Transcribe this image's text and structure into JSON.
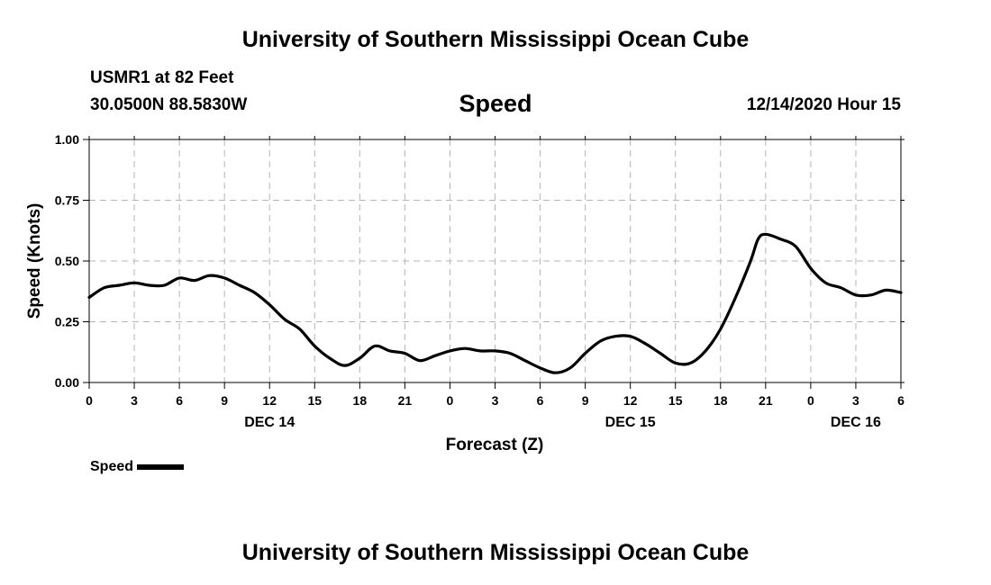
{
  "header": {
    "title": "University of Southern Mississippi Ocean Cube",
    "station": "USMR1 at 82 Feet",
    "coords": "30.0500N 88.5830W",
    "parameter": "Speed",
    "datetime": "12/14/2020 Hour 15"
  },
  "footer": {
    "title": "University of Southern Mississippi Ocean Cube"
  },
  "legend": {
    "label": "Speed",
    "line_color": "#000000"
  },
  "chart_data": {
    "type": "line",
    "title": "Speed",
    "xlabel": "Forecast (Z)",
    "ylabel": "Speed (Knots)",
    "x_unit": "hours",
    "xlim": [
      0,
      54
    ],
    "ylim": [
      0,
      1.0
    ],
    "grid": true,
    "legend_position": "bottom-left",
    "y_ticks": [
      {
        "value": 0.0,
        "label": "0.00"
      },
      {
        "value": 0.25,
        "label": "0.25"
      },
      {
        "value": 0.5,
        "label": "0.50"
      },
      {
        "value": 0.75,
        "label": "0.75"
      },
      {
        "value": 1.0,
        "label": "1.00"
      }
    ],
    "x_ticks": [
      {
        "value": 0,
        "label": "0"
      },
      {
        "value": 3,
        "label": "3"
      },
      {
        "value": 6,
        "label": "6"
      },
      {
        "value": 9,
        "label": "9"
      },
      {
        "value": 12,
        "label": "12"
      },
      {
        "value": 15,
        "label": "15"
      },
      {
        "value": 18,
        "label": "18"
      },
      {
        "value": 21,
        "label": "21"
      },
      {
        "value": 24,
        "label": "0"
      },
      {
        "value": 27,
        "label": "3"
      },
      {
        "value": 30,
        "label": "6"
      },
      {
        "value": 33,
        "label": "9"
      },
      {
        "value": 36,
        "label": "12"
      },
      {
        "value": 39,
        "label": "15"
      },
      {
        "value": 42,
        "label": "18"
      },
      {
        "value": 45,
        "label": "21"
      },
      {
        "value": 48,
        "label": "0"
      },
      {
        "value": 51,
        "label": "3"
      },
      {
        "value": 54,
        "label": "6"
      }
    ],
    "date_labels": [
      {
        "value": 12,
        "label": "DEC 14"
      },
      {
        "value": 36,
        "label": "DEC 15"
      },
      {
        "value": 51,
        "label": "DEC 16"
      }
    ],
    "series": [
      {
        "name": "Speed",
        "color": "#000000",
        "x": [
          0,
          1,
          2,
          3,
          4,
          5,
          6,
          7,
          8,
          9,
          10,
          11,
          12,
          13,
          14,
          15,
          16,
          17,
          18,
          19,
          20,
          21,
          22,
          23,
          24,
          25,
          26,
          27,
          28,
          29,
          30,
          31,
          32,
          33,
          34,
          35,
          36,
          37,
          38,
          39,
          40,
          41,
          42,
          43,
          44,
          44.5,
          45,
          46,
          47,
          48,
          49,
          50,
          51,
          52,
          53,
          54
        ],
        "values": [
          0.35,
          0.39,
          0.4,
          0.41,
          0.4,
          0.4,
          0.43,
          0.42,
          0.44,
          0.43,
          0.4,
          0.37,
          0.32,
          0.26,
          0.22,
          0.15,
          0.1,
          0.07,
          0.1,
          0.15,
          0.13,
          0.12,
          0.09,
          0.11,
          0.13,
          0.14,
          0.13,
          0.13,
          0.12,
          0.09,
          0.06,
          0.04,
          0.06,
          0.12,
          0.17,
          0.19,
          0.19,
          0.16,
          0.12,
          0.08,
          0.08,
          0.13,
          0.22,
          0.35,
          0.5,
          0.59,
          0.61,
          0.59,
          0.56,
          0.47,
          0.41,
          0.39,
          0.36,
          0.36,
          0.38,
          0.37
        ]
      }
    ]
  }
}
